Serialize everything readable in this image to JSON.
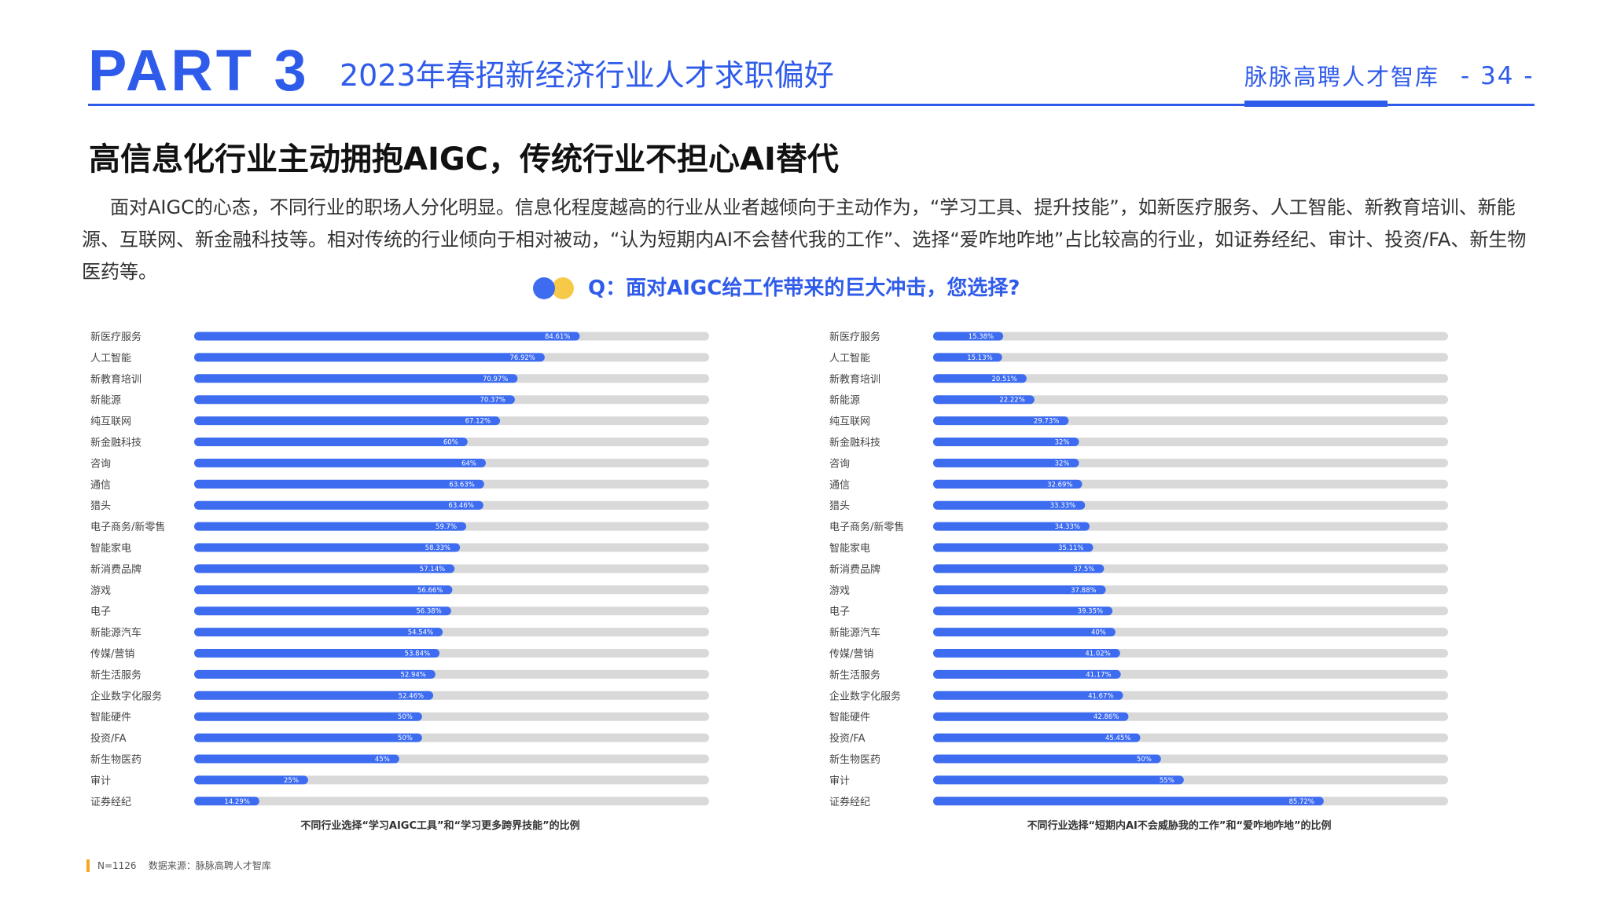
{
  "header": {
    "part_label": "PART 3",
    "title": "2023年春招新经济行业人才求职偏好",
    "brand": "脉脉高聘人才智库",
    "page_number": "- 34 -",
    "color": "#2f5bea"
  },
  "headline": "高信息化行业主动拥抱AIGC，传统行业不担心AI替代",
  "intro": "面对AIGC的心态，不同行业的职场人分化明显。信息化程度越高的行业从业者越倾向于主动作为，“学习工具、提升技能”，如新医疗服务、人工智能、新教育培训、新能源、互联网、新金融科技等。相对传统的行业倾向于相对被动，“认为短期内AI不会替代我的工作”、选择“爱咋地咋地”占比较高的行业，如证券经纪、审计、投资/FA、新生物医药等。",
  "question": "Q：面对AIGC给工作带来的巨大冲击，您选择?",
  "chart_data": [
    {
      "type": "bar",
      "orientation": "horizontal",
      "categories": [
        "新医疗服务",
        "人工智能",
        "新教育培训",
        "新能源",
        "纯互联网",
        "新金融科技",
        "咨询",
        "通信",
        "猎头",
        "电子商务/新零售",
        "智能家电",
        "新消费品牌",
        "游戏",
        "电子",
        "新能源汽车",
        "传媒/营销",
        "新生活服务",
        "企业数字化服务",
        "智能硬件",
        "投资/FA",
        "新生物医药",
        "审计",
        "证券经纪"
      ],
      "values": [
        84.61,
        76.92,
        70.97,
        70.37,
        67.12,
        60,
        64,
        63.63,
        63.46,
        59.7,
        58.33,
        57.14,
        56.66,
        56.38,
        54.54,
        53.84,
        52.94,
        52.46,
        50,
        50,
        45,
        25,
        14.29
      ],
      "value_labels": [
        "84.61%",
        "76.92%",
        "70.97%",
        "70.37%",
        "67.12%",
        "60%",
        "64%",
        "63.63%",
        "63.46%",
        "59.7%",
        "58.33%",
        "57.14%",
        "56.66%",
        "56.38%",
        "54.54%",
        "53.84%",
        "52.94%",
        "52.46%",
        "50%",
        "50%",
        "45%",
        "25%",
        "14.29%"
      ],
      "xlim": [
        0,
        113
      ],
      "title": "不同行业选择“学习AIGC工具”和“学习更多跨界技能”的比例",
      "bar_color": "#3d6cf0",
      "track_color": "#d9d9d9"
    },
    {
      "type": "bar",
      "orientation": "horizontal",
      "categories": [
        "新医疗服务",
        "人工智能",
        "新教育培训",
        "新能源",
        "纯互联网",
        "新金融科技",
        "咨询",
        "通信",
        "猎头",
        "电子商务/新零售",
        "智能家电",
        "新消费品牌",
        "游戏",
        "电子",
        "新能源汽车",
        "传媒/营销",
        "新生活服务",
        "企业数字化服务",
        "智能硬件",
        "投资/FA",
        "新生物医药",
        "审计",
        "证券经纪"
      ],
      "values": [
        15.38,
        15.13,
        20.51,
        22.22,
        29.73,
        32,
        32,
        32.69,
        33.33,
        34.33,
        35.11,
        37.5,
        37.88,
        39.35,
        40,
        41.02,
        41.17,
        41.67,
        42.86,
        45.45,
        50,
        55,
        85.72
      ],
      "value_labels": [
        "15.38%",
        "15.13%",
        "20.51%",
        "22.22%",
        "29.73%",
        "32%",
        "32%",
        "32.69%",
        "33.33%",
        "34.33%",
        "35.11%",
        "37.5%",
        "37.88%",
        "39.35%",
        "40%",
        "41.02%",
        "41.17%",
        "41.67%",
        "42.86%",
        "45.45%",
        "50%",
        "55%",
        "85.72%"
      ],
      "xlim": [
        0,
        113
      ],
      "title": "不同行业选择“短期内AI不会威胁我的工作”和“爱咋地咋地”的比例",
      "bar_color": "#3d6cf0",
      "track_color": "#d9d9d9"
    }
  ],
  "footer": {
    "sample": "N=1126",
    "source": "数据来源：脉脉高聘人才智库",
    "mark_color": "#f5a623"
  }
}
